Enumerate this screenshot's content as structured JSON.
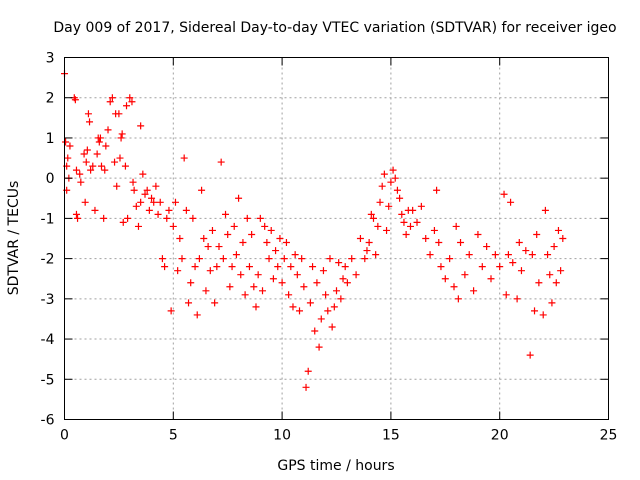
{
  "chart_data": {
    "type": "scatter",
    "title": "Day 009 of 2017, Sidereal Day-to-day VTEC variation (SDTVAR) for receiver igeo",
    "xlabel": "GPS time / hours",
    "ylabel": "SDTVAR / TECUs",
    "xlim": [
      0,
      25
    ],
    "ylim": [
      -6,
      3
    ],
    "xticks": [
      0,
      5,
      10,
      15,
      20,
      25
    ],
    "yticks": [
      -6,
      -5,
      -4,
      -3,
      -2,
      -1,
      0,
      1,
      2,
      3
    ],
    "grid": true,
    "marker": "plus",
    "series": [
      {
        "name": "SDTVAR",
        "color": "#ff0000",
        "points": [
          [
            0.0,
            2.6
          ],
          [
            0.05,
            0.9
          ],
          [
            0.1,
            0.3
          ],
          [
            0.1,
            -0.3
          ],
          [
            0.15,
            0.5
          ],
          [
            0.2,
            0.0
          ],
          [
            0.25,
            0.8
          ],
          [
            0.45,
            2.0
          ],
          [
            0.5,
            1.95
          ],
          [
            0.55,
            0.2
          ],
          [
            0.55,
            -0.9
          ],
          [
            0.6,
            -1.0
          ],
          [
            0.7,
            0.1
          ],
          [
            0.75,
            -0.1
          ],
          [
            0.9,
            0.6
          ],
          [
            0.95,
            -0.6
          ],
          [
            1.0,
            0.4
          ],
          [
            1.05,
            0.7
          ],
          [
            1.1,
            1.6
          ],
          [
            1.15,
            1.4
          ],
          [
            1.2,
            0.2
          ],
          [
            1.3,
            0.3
          ],
          [
            1.4,
            -0.8
          ],
          [
            1.5,
            0.6
          ],
          [
            1.55,
            1.0
          ],
          [
            1.6,
            0.9
          ],
          [
            1.65,
            1.0
          ],
          [
            1.7,
            0.3
          ],
          [
            1.8,
            -1.0
          ],
          [
            1.85,
            0.2
          ],
          [
            1.9,
            0.8
          ],
          [
            2.0,
            1.2
          ],
          [
            2.1,
            1.9
          ],
          [
            2.2,
            2.0
          ],
          [
            2.3,
            0.4
          ],
          [
            2.35,
            1.6
          ],
          [
            2.4,
            -0.2
          ],
          [
            2.5,
            1.6
          ],
          [
            2.55,
            0.5
          ],
          [
            2.6,
            1.0
          ],
          [
            2.65,
            1.1
          ],
          [
            2.7,
            -1.1
          ],
          [
            2.8,
            0.3
          ],
          [
            2.85,
            1.8
          ],
          [
            2.9,
            -1.0
          ],
          [
            3.0,
            2.0
          ],
          [
            3.1,
            1.9
          ],
          [
            3.15,
            -0.1
          ],
          [
            3.2,
            -0.3
          ],
          [
            3.3,
            -0.7
          ],
          [
            3.4,
            -1.2
          ],
          [
            3.5,
            1.3
          ],
          [
            3.5,
            -0.6
          ],
          [
            3.6,
            0.1
          ],
          [
            3.7,
            -0.4
          ],
          [
            3.8,
            -0.3
          ],
          [
            3.9,
            -0.8
          ],
          [
            4.0,
            -0.5
          ],
          [
            4.1,
            -0.6
          ],
          [
            4.2,
            -0.2
          ],
          [
            4.3,
            -0.9
          ],
          [
            4.4,
            -0.6
          ],
          [
            4.5,
            -2.0
          ],
          [
            4.6,
            -2.2
          ],
          [
            4.7,
            -1.0
          ],
          [
            4.8,
            -0.8
          ],
          [
            4.9,
            -3.3
          ],
          [
            5.0,
            -1.2
          ],
          [
            5.1,
            -0.6
          ],
          [
            5.2,
            -2.3
          ],
          [
            5.3,
            -1.5
          ],
          [
            5.4,
            -2.0
          ],
          [
            5.5,
            0.5
          ],
          [
            5.6,
            -0.8
          ],
          [
            5.7,
            -3.1
          ],
          [
            5.8,
            -2.6
          ],
          [
            5.9,
            -1.0
          ],
          [
            6.0,
            -2.2
          ],
          [
            6.1,
            -3.4
          ],
          [
            6.2,
            -2.0
          ],
          [
            6.3,
            -0.3
          ],
          [
            6.4,
            -1.5
          ],
          [
            6.5,
            -2.8
          ],
          [
            6.6,
            -1.7
          ],
          [
            6.7,
            -2.3
          ],
          [
            6.8,
            -1.3
          ],
          [
            6.9,
            -3.1
          ],
          [
            7.0,
            -2.2
          ],
          [
            7.1,
            -1.7
          ],
          [
            7.2,
            0.4
          ],
          [
            7.3,
            -2.0
          ],
          [
            7.4,
            -0.9
          ],
          [
            7.5,
            -1.4
          ],
          [
            7.6,
            -2.7
          ],
          [
            7.7,
            -2.2
          ],
          [
            7.8,
            -1.2
          ],
          [
            7.9,
            -1.9
          ],
          [
            8.0,
            -0.5
          ],
          [
            8.1,
            -2.4
          ],
          [
            8.2,
            -1.6
          ],
          [
            8.3,
            -2.9
          ],
          [
            8.4,
            -1.0
          ],
          [
            8.5,
            -2.2
          ],
          [
            8.6,
            -1.4
          ],
          [
            8.7,
            -2.7
          ],
          [
            8.8,
            -3.2
          ],
          [
            8.9,
            -2.4
          ],
          [
            9.0,
            -1.0
          ],
          [
            9.1,
            -2.8
          ],
          [
            9.2,
            -1.2
          ],
          [
            9.3,
            -1.6
          ],
          [
            9.4,
            -2.0
          ],
          [
            9.5,
            -1.3
          ],
          [
            9.6,
            -2.5
          ],
          [
            9.7,
            -1.8
          ],
          [
            9.8,
            -2.2
          ],
          [
            9.9,
            -1.5
          ],
          [
            10.0,
            -2.6
          ],
          [
            10.1,
            -2.0
          ],
          [
            10.2,
            -1.6
          ],
          [
            10.3,
            -2.9
          ],
          [
            10.4,
            -2.2
          ],
          [
            10.5,
            -3.2
          ],
          [
            10.6,
            -1.9
          ],
          [
            10.7,
            -2.4
          ],
          [
            10.8,
            -3.3
          ],
          [
            10.9,
            -2.0
          ],
          [
            11.0,
            -2.7
          ],
          [
            11.1,
            -5.2
          ],
          [
            11.2,
            -4.8
          ],
          [
            11.3,
            -3.1
          ],
          [
            11.4,
            -2.2
          ],
          [
            11.5,
            -3.8
          ],
          [
            11.6,
            -2.6
          ],
          [
            11.7,
            -4.2
          ],
          [
            11.8,
            -3.5
          ],
          [
            11.9,
            -2.3
          ],
          [
            12.0,
            -2.9
          ],
          [
            12.1,
            -3.3
          ],
          [
            12.2,
            -2.0
          ],
          [
            12.3,
            -3.7
          ],
          [
            12.4,
            -3.2
          ],
          [
            12.5,
            -2.8
          ],
          [
            12.6,
            -2.1
          ],
          [
            12.7,
            -3.0
          ],
          [
            12.8,
            -2.5
          ],
          [
            12.9,
            -2.2
          ],
          [
            13.0,
            -2.6
          ],
          [
            13.2,
            -2.0
          ],
          [
            13.4,
            -2.4
          ],
          [
            13.6,
            -1.5
          ],
          [
            13.8,
            -2.0
          ],
          [
            13.9,
            -1.8
          ],
          [
            14.0,
            -1.6
          ],
          [
            14.1,
            -0.9
          ],
          [
            14.2,
            -1.0
          ],
          [
            14.3,
            -1.9
          ],
          [
            14.4,
            -1.2
          ],
          [
            14.5,
            -0.6
          ],
          [
            14.6,
            -0.2
          ],
          [
            14.7,
            0.1
          ],
          [
            14.8,
            -1.3
          ],
          [
            14.9,
            -0.7
          ],
          [
            15.0,
            -0.1
          ],
          [
            15.1,
            0.2
          ],
          [
            15.2,
            0.0
          ],
          [
            15.3,
            -0.3
          ],
          [
            15.4,
            -0.5
          ],
          [
            15.5,
            -0.9
          ],
          [
            15.6,
            -1.1
          ],
          [
            15.7,
            -1.4
          ],
          [
            15.8,
            -0.8
          ],
          [
            15.9,
            -1.2
          ],
          [
            16.0,
            -0.8
          ],
          [
            16.2,
            -1.1
          ],
          [
            16.4,
            -0.7
          ],
          [
            16.6,
            -1.5
          ],
          [
            16.8,
            -1.9
          ],
          [
            17.0,
            -1.3
          ],
          [
            17.1,
            -0.3
          ],
          [
            17.2,
            -1.6
          ],
          [
            17.3,
            -2.2
          ],
          [
            17.5,
            -2.5
          ],
          [
            17.7,
            -2.0
          ],
          [
            17.9,
            -2.7
          ],
          [
            18.0,
            -1.2
          ],
          [
            18.1,
            -3.0
          ],
          [
            18.2,
            -1.6
          ],
          [
            18.4,
            -2.4
          ],
          [
            18.6,
            -1.9
          ],
          [
            18.8,
            -2.8
          ],
          [
            19.0,
            -1.4
          ],
          [
            19.2,
            -2.2
          ],
          [
            19.4,
            -1.7
          ],
          [
            19.6,
            -2.5
          ],
          [
            19.8,
            -1.9
          ],
          [
            20.0,
            -2.2
          ],
          [
            20.2,
            -0.4
          ],
          [
            20.3,
            -2.9
          ],
          [
            20.4,
            -1.9
          ],
          [
            20.5,
            -0.6
          ],
          [
            20.6,
            -2.1
          ],
          [
            20.8,
            -3.0
          ],
          [
            20.9,
            -1.6
          ],
          [
            21.0,
            -2.3
          ],
          [
            21.2,
            -1.8
          ],
          [
            21.4,
            -4.4
          ],
          [
            21.5,
            -1.9
          ],
          [
            21.6,
            -3.3
          ],
          [
            21.7,
            -1.4
          ],
          [
            21.8,
            -2.6
          ],
          [
            22.0,
            -3.4
          ],
          [
            22.1,
            -0.8
          ],
          [
            22.2,
            -1.9
          ],
          [
            22.3,
            -2.4
          ],
          [
            22.4,
            -3.1
          ],
          [
            22.5,
            -1.7
          ],
          [
            22.6,
            -2.6
          ],
          [
            22.7,
            -1.3
          ],
          [
            22.8,
            -2.3
          ],
          [
            22.9,
            -1.5
          ]
        ]
      }
    ]
  }
}
